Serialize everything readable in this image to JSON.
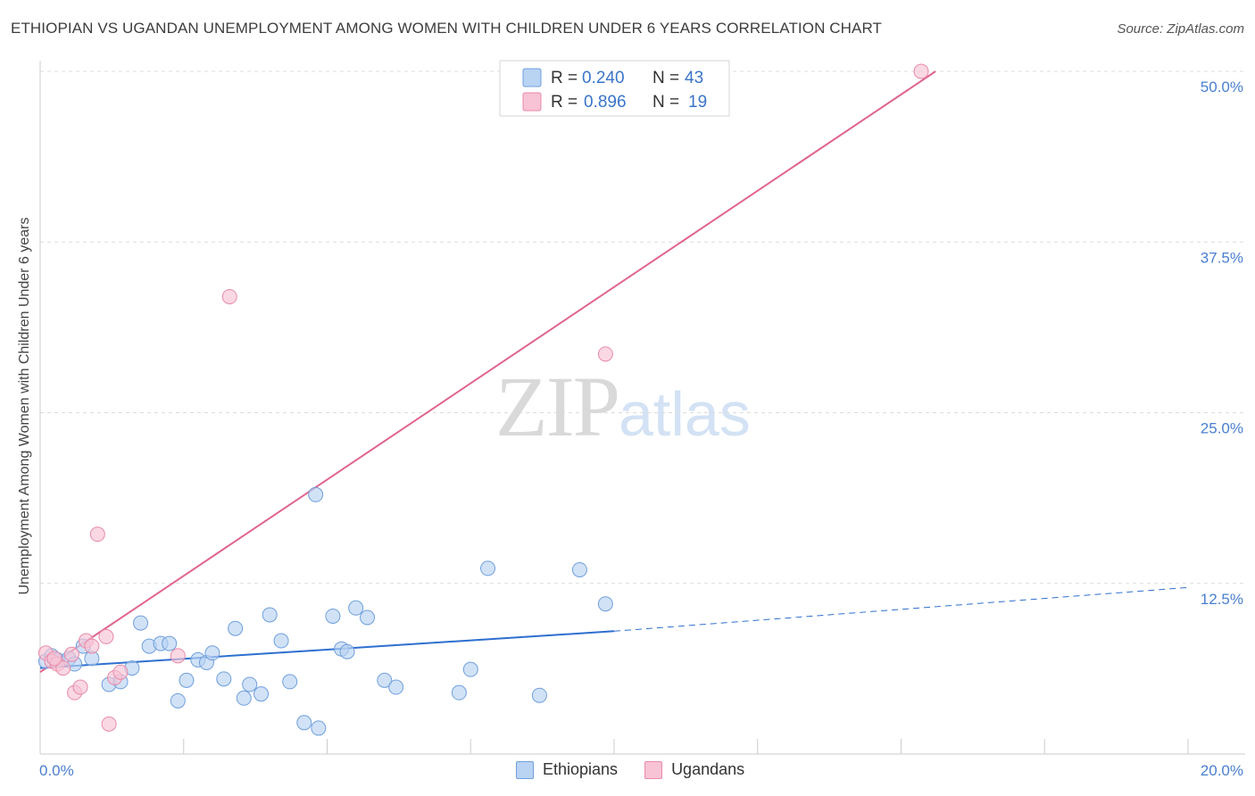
{
  "title": "ETHIOPIAN VS UGANDAN UNEMPLOYMENT AMONG WOMEN WITH CHILDREN UNDER 6 YEARS CORRELATION CHART",
  "source": "Source: ZipAtlas.com",
  "watermark": {
    "zip": "ZIP",
    "atlas": "atlas"
  },
  "colors": {
    "ethiopians_fill": "#b9d3f3",
    "ethiopians_stroke": "#6f9fdc",
    "ethiopians_line": "#2d6fcf",
    "ugandans_fill": "#f8c3d4",
    "ugandans_stroke": "#e88aa8",
    "ugandans_line": "#e0648f",
    "grid": "#dcdcdc",
    "tick_text": "#4a7fcf"
  },
  "legend": {
    "rows": [
      {
        "r_label": "R = ",
        "r_value": "0.240",
        "n_label": "N = ",
        "n_value": "43"
      },
      {
        "r_label": "R = ",
        "r_value": "0.896",
        "n_label": "N = ",
        "n_value": "19"
      }
    ]
  },
  "bottom_legend": {
    "ethiopians": "Ethiopians",
    "ugandans": "Ugandans"
  },
  "chart_data": {
    "type": "scatter",
    "title": "ETHIOPIAN VS UGANDAN UNEMPLOYMENT AMONG WOMEN WITH CHILDREN UNDER 6 YEARS CORRELATION CHART",
    "xlabel": "",
    "ylabel": "Unemployment Among Women with Children Under 6 years",
    "xlim": [
      0,
      20
    ],
    "ylim": [
      0,
      50
    ],
    "x_tick_labels": [
      "0.0%",
      "20.0%"
    ],
    "y_ticks": [
      12.5,
      25.0,
      37.5,
      50.0
    ],
    "y_tick_labels": [
      "12.5%",
      "25.0%",
      "37.5%",
      "50.0%"
    ],
    "grid": "horizontal dashed",
    "legend_position": "top-center",
    "series": [
      {
        "name": "Ethiopians",
        "r": 0.24,
        "n": 43,
        "trend": {
          "x": [
            0,
            10.0
          ],
          "y": [
            6.3,
            9.0
          ],
          "dashed_extension_to": [
            20,
            12.2
          ]
        },
        "points": [
          [
            0.1,
            6.8
          ],
          [
            0.2,
            7.2
          ],
          [
            0.3,
            6.9
          ],
          [
            0.5,
            7.0
          ],
          [
            0.6,
            6.6
          ],
          [
            0.75,
            7.9
          ],
          [
            0.9,
            7.0
          ],
          [
            1.2,
            5.1
          ],
          [
            1.4,
            5.3
          ],
          [
            1.6,
            6.3
          ],
          [
            1.75,
            9.6
          ],
          [
            1.9,
            7.9
          ],
          [
            2.1,
            8.1
          ],
          [
            2.25,
            8.1
          ],
          [
            2.4,
            3.9
          ],
          [
            2.55,
            5.4
          ],
          [
            2.75,
            6.9
          ],
          [
            2.9,
            6.7
          ],
          [
            3.0,
            7.4
          ],
          [
            3.2,
            5.5
          ],
          [
            3.4,
            9.2
          ],
          [
            3.55,
            4.1
          ],
          [
            3.65,
            5.1
          ],
          [
            3.85,
            4.4
          ],
          [
            4.0,
            10.2
          ],
          [
            4.2,
            8.3
          ],
          [
            4.35,
            5.3
          ],
          [
            4.6,
            2.3
          ],
          [
            4.8,
            19.0
          ],
          [
            4.85,
            1.9
          ],
          [
            5.1,
            10.1
          ],
          [
            5.25,
            7.7
          ],
          [
            5.35,
            7.5
          ],
          [
            5.5,
            10.7
          ],
          [
            5.7,
            10.0
          ],
          [
            6.0,
            5.4
          ],
          [
            6.2,
            4.9
          ],
          [
            7.3,
            4.5
          ],
          [
            7.5,
            6.2
          ],
          [
            7.8,
            13.6
          ],
          [
            8.7,
            4.3
          ],
          [
            9.4,
            13.5
          ],
          [
            9.85,
            11.0
          ]
        ]
      },
      {
        "name": "Ugandans",
        "r": 0.896,
        "n": 19,
        "trend": {
          "x": [
            0,
            15.6
          ],
          "y": [
            6.0,
            50.0
          ]
        },
        "points": [
          [
            0.1,
            7.4
          ],
          [
            0.2,
            6.8
          ],
          [
            0.3,
            6.6
          ],
          [
            0.4,
            6.3
          ],
          [
            0.55,
            7.3
          ],
          [
            0.6,
            4.5
          ],
          [
            0.7,
            4.9
          ],
          [
            0.8,
            8.3
          ],
          [
            0.9,
            7.9
          ],
          [
            1.0,
            16.1
          ],
          [
            1.15,
            8.6
          ],
          [
            1.2,
            2.2
          ],
          [
            1.3,
            5.6
          ],
          [
            1.4,
            6.0
          ],
          [
            2.4,
            7.2
          ],
          [
            3.3,
            33.5
          ],
          [
            9.85,
            29.3
          ],
          [
            15.35,
            50.0
          ],
          [
            0.25,
            7.0
          ]
        ]
      }
    ]
  }
}
